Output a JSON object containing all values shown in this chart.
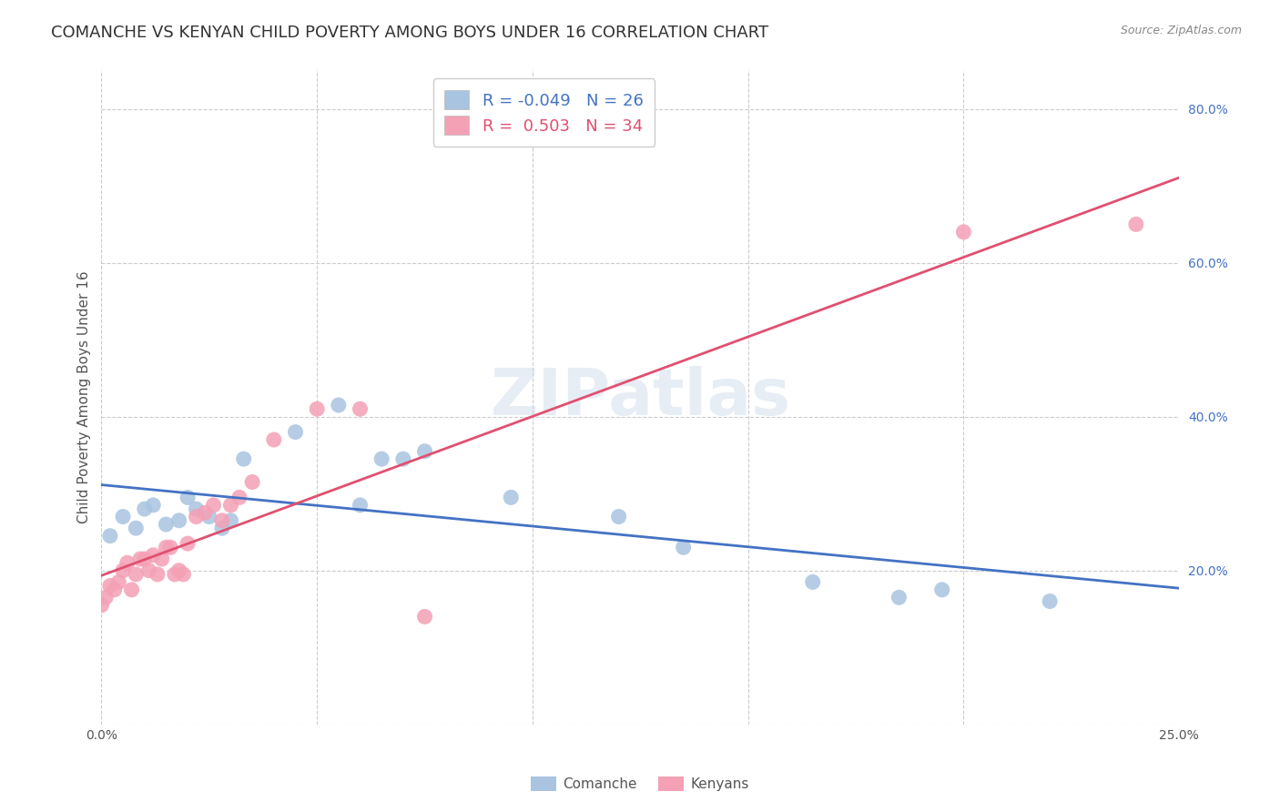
{
  "title": "COMANCHE VS KENYAN CHILD POVERTY AMONG BOYS UNDER 16 CORRELATION CHART",
  "source": "Source: ZipAtlas.com",
  "ylabel": "Child Poverty Among Boys Under 16",
  "watermark": "ZIPatlas",
  "xlim": [
    0.0,
    0.25
  ],
  "ylim": [
    0.0,
    0.85
  ],
  "comanche_R": -0.049,
  "comanche_N": 26,
  "kenyan_R": 0.503,
  "kenyan_N": 34,
  "comanche_color": "#a8c4e0",
  "kenyan_color": "#f4a0b5",
  "line_comanche_color": "#4472c4",
  "line_kenyan_color": "#e05070",
  "comanche_x": [
    0.002,
    0.005,
    0.008,
    0.01,
    0.012,
    0.015,
    0.018,
    0.02,
    0.022,
    0.025,
    0.028,
    0.03,
    0.033,
    0.045,
    0.055,
    0.06,
    0.065,
    0.07,
    0.075,
    0.095,
    0.12,
    0.135,
    0.165,
    0.185,
    0.195,
    0.22
  ],
  "comanche_y": [
    0.245,
    0.27,
    0.255,
    0.28,
    0.285,
    0.26,
    0.265,
    0.295,
    0.28,
    0.27,
    0.255,
    0.265,
    0.345,
    0.38,
    0.415,
    0.285,
    0.345,
    0.345,
    0.355,
    0.295,
    0.27,
    0.23,
    0.185,
    0.165,
    0.175,
    0.16
  ],
  "kenyan_x": [
    0.0,
    0.001,
    0.002,
    0.003,
    0.004,
    0.005,
    0.006,
    0.007,
    0.008,
    0.009,
    0.01,
    0.011,
    0.012,
    0.013,
    0.014,
    0.015,
    0.016,
    0.017,
    0.018,
    0.019,
    0.02,
    0.022,
    0.024,
    0.026,
    0.028,
    0.03,
    0.032,
    0.035,
    0.04,
    0.05,
    0.06,
    0.075,
    0.2,
    0.24
  ],
  "kenyan_y": [
    0.155,
    0.165,
    0.18,
    0.175,
    0.185,
    0.2,
    0.21,
    0.175,
    0.195,
    0.215,
    0.215,
    0.2,
    0.22,
    0.195,
    0.215,
    0.23,
    0.23,
    0.195,
    0.2,
    0.195,
    0.235,
    0.27,
    0.275,
    0.285,
    0.265,
    0.285,
    0.295,
    0.315,
    0.37,
    0.41,
    0.41,
    0.14,
    0.64,
    0.65
  ],
  "grid_color": "#cccccc",
  "background_color": "#ffffff",
  "title_fontsize": 13,
  "label_fontsize": 11,
  "tick_fontsize": 10,
  "legend_fontsize": 13
}
